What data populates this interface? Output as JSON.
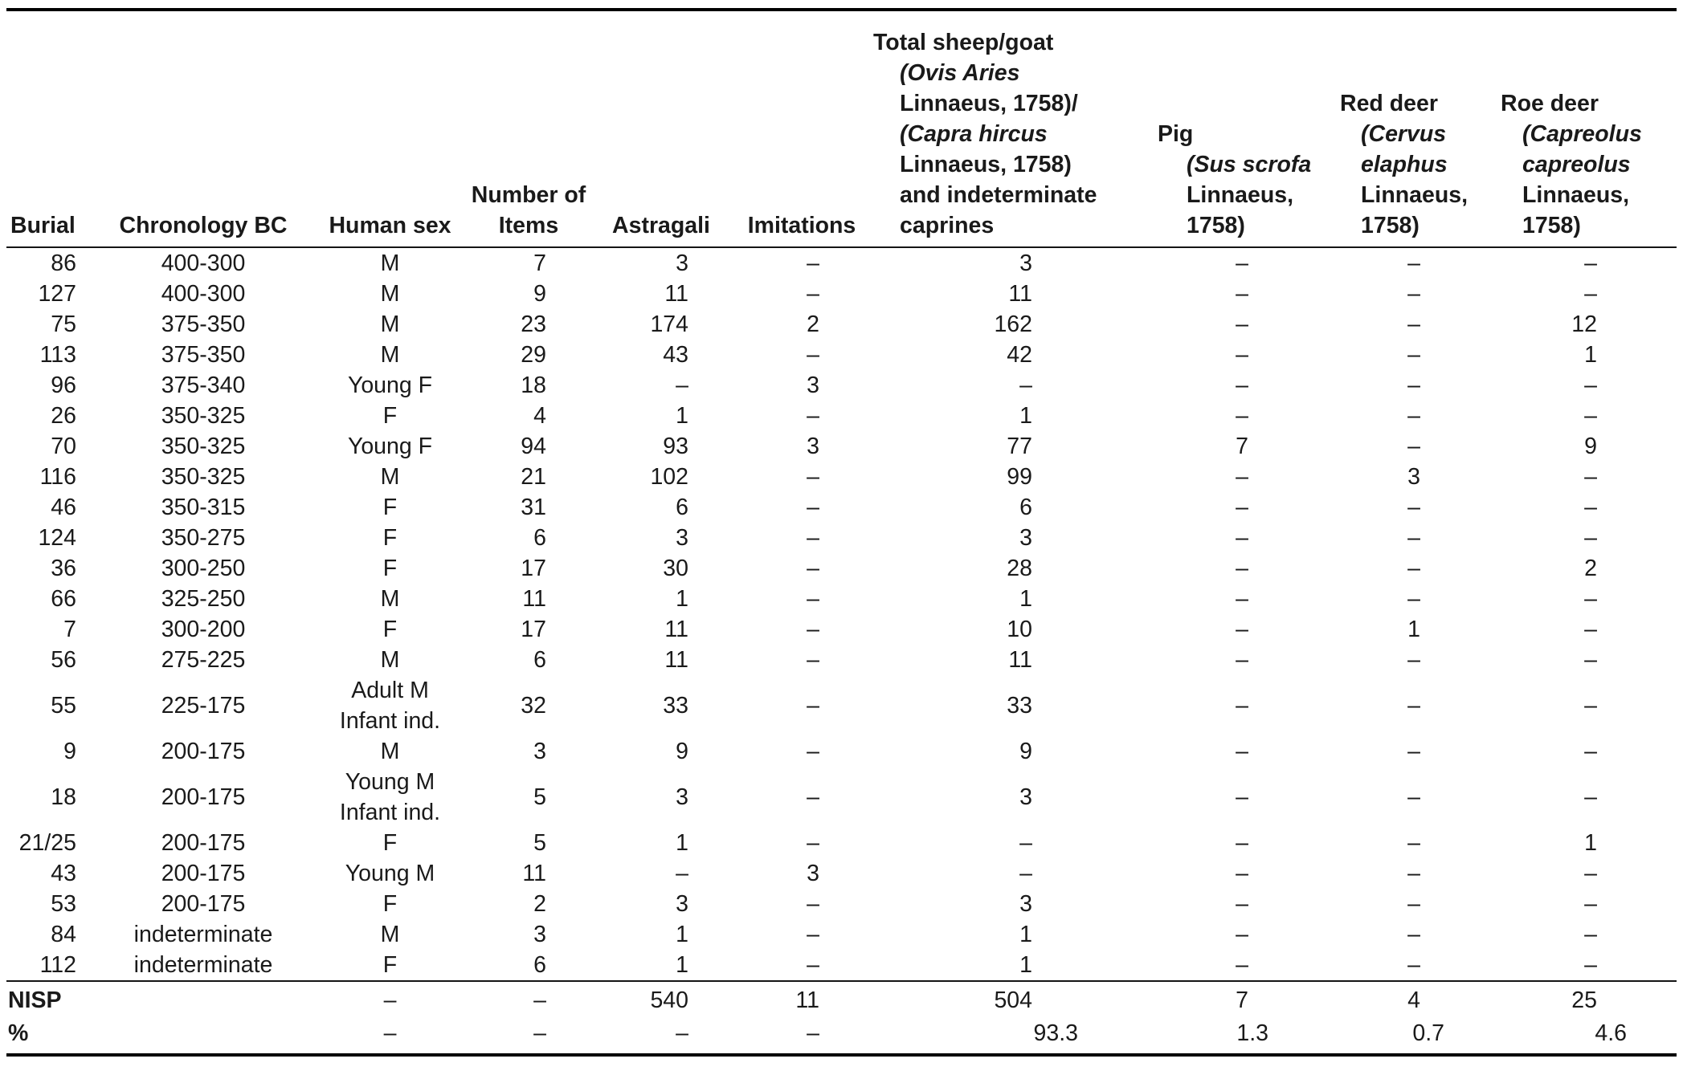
{
  "table": {
    "dash": "–",
    "columns": [
      {
        "name": "burial",
        "lines": [
          [
            "Burial"
          ]
        ]
      },
      {
        "name": "chronology_bc",
        "lines": [
          [
            "Chronology BC"
          ]
        ]
      },
      {
        "name": "human_sex",
        "lines": [
          [
            "Human sex"
          ]
        ]
      },
      {
        "name": "number_of_items",
        "lines": [
          [
            "Number of"
          ],
          [
            "Items"
          ]
        ]
      },
      {
        "name": "astragali",
        "lines": [
          [
            "Astragali"
          ]
        ]
      },
      {
        "name": "imitations",
        "lines": [
          [
            "Imitations"
          ]
        ]
      },
      {
        "name": "total_sheep_goat",
        "lines": [
          [
            "Total sheep/goat"
          ],
          [
            {
              "t": "(Ovis Aries",
              "italic": true
            }
          ],
          [
            "Linnaeus, 1758)/"
          ],
          [
            {
              "t": "(Capra hircus",
              "italic": true
            }
          ],
          [
            "Linnaeus, 1758)"
          ],
          [
            "and indeterminate"
          ],
          [
            "caprines"
          ]
        ]
      },
      {
        "name": "pig",
        "lines": [
          [
            "Pig"
          ],
          [
            {
              "t": "(Sus scrofa",
              "italic": true
            }
          ],
          [
            "Linnaeus,"
          ],
          [
            "1758)"
          ]
        ]
      },
      {
        "name": "red_deer",
        "lines": [
          [
            "Red deer"
          ],
          [
            {
              "t": "(Cervus",
              "italic": true
            }
          ],
          [
            {
              "t": "elaphus",
              "italic": true
            }
          ],
          [
            "Linnaeus,"
          ],
          [
            "1758)"
          ]
        ]
      },
      {
        "name": "roe_deer",
        "lines": [
          [
            "Roe deer"
          ],
          [
            {
              "t": "(Capreolus",
              "italic": true
            }
          ],
          [
            {
              "t": "capreolus",
              "italic": true
            }
          ],
          [
            "Linnaeus,"
          ],
          [
            "1758)"
          ]
        ]
      }
    ],
    "rows": [
      {
        "burial": "86",
        "chronology": "400-300",
        "sex": [
          "M"
        ],
        "items": "7",
        "astragali": "3",
        "imitations": "–",
        "sheep_goat": "3",
        "pig": "–",
        "red_deer": "–",
        "roe_deer": "–"
      },
      {
        "burial": "127",
        "chronology": "400-300",
        "sex": [
          "M"
        ],
        "items": "9",
        "astragali": "11",
        "imitations": "–",
        "sheep_goat": "11",
        "pig": "–",
        "red_deer": "–",
        "roe_deer": "–"
      },
      {
        "burial": "75",
        "chronology": "375-350",
        "sex": [
          "M"
        ],
        "items": "23",
        "astragali": "174",
        "imitations": "2",
        "sheep_goat": "162",
        "pig": "–",
        "red_deer": "–",
        "roe_deer": "12"
      },
      {
        "burial": "113",
        "chronology": "375-350",
        "sex": [
          "M"
        ],
        "items": "29",
        "astragali": "43",
        "imitations": "–",
        "sheep_goat": "42",
        "pig": "–",
        "red_deer": "–",
        "roe_deer": "1"
      },
      {
        "burial": "96",
        "chronology": "375-340",
        "sex": [
          "Young F"
        ],
        "items": "18",
        "astragali": "–",
        "imitations": "3",
        "sheep_goat": "–",
        "pig": "–",
        "red_deer": "–",
        "roe_deer": "–"
      },
      {
        "burial": "26",
        "chronology": "350-325",
        "sex": [
          "F"
        ],
        "items": "4",
        "astragali": "1",
        "imitations": "–",
        "sheep_goat": "1",
        "pig": "–",
        "red_deer": "–",
        "roe_deer": "–"
      },
      {
        "burial": "70",
        "chronology": "350-325",
        "sex": [
          "Young F"
        ],
        "items": "94",
        "astragali": "93",
        "imitations": "3",
        "sheep_goat": "77",
        "pig": "7",
        "red_deer": "–",
        "roe_deer": "9"
      },
      {
        "burial": "116",
        "chronology": "350-325",
        "sex": [
          "M"
        ],
        "items": "21",
        "astragali": "102",
        "imitations": "–",
        "sheep_goat": "99",
        "pig": "–",
        "red_deer": "3",
        "roe_deer": "–"
      },
      {
        "burial": "46",
        "chronology": "350-315",
        "sex": [
          "F"
        ],
        "items": "31",
        "astragali": "6",
        "imitations": "–",
        "sheep_goat": "6",
        "pig": "–",
        "red_deer": "–",
        "roe_deer": "–"
      },
      {
        "burial": "124",
        "chronology": "350-275",
        "sex": [
          "F"
        ],
        "items": "6",
        "astragali": "3",
        "imitations": "–",
        "sheep_goat": "3",
        "pig": "–",
        "red_deer": "–",
        "roe_deer": "–"
      },
      {
        "burial": "36",
        "chronology": "300-250",
        "sex": [
          "F"
        ],
        "items": "17",
        "astragali": "30",
        "imitations": "–",
        "sheep_goat": "28",
        "pig": "–",
        "red_deer": "–",
        "roe_deer": "2"
      },
      {
        "burial": "66",
        "chronology": "325-250",
        "sex": [
          "M"
        ],
        "items": "11",
        "astragali": "1",
        "imitations": "–",
        "sheep_goat": "1",
        "pig": "–",
        "red_deer": "–",
        "roe_deer": "–"
      },
      {
        "burial": "7",
        "chronology": "300-200",
        "sex": [
          "F"
        ],
        "items": "17",
        "astragali": "11",
        "imitations": "–",
        "sheep_goat": "10",
        "pig": "–",
        "red_deer": "1",
        "roe_deer": "–"
      },
      {
        "burial": "56",
        "chronology": "275-225",
        "sex": [
          "M"
        ],
        "items": "6",
        "astragali": "11",
        "imitations": "–",
        "sheep_goat": "11",
        "pig": "–",
        "red_deer": "–",
        "roe_deer": "–"
      },
      {
        "burial": "55",
        "chronology": "225-175",
        "sex": [
          "Adult M",
          "Infant ind."
        ],
        "items": "32",
        "astragali": "33",
        "imitations": "–",
        "sheep_goat": "33",
        "pig": "–",
        "red_deer": "–",
        "roe_deer": "–"
      },
      {
        "burial": "9",
        "chronology": "200-175",
        "sex": [
          "M"
        ],
        "items": "3",
        "astragali": "9",
        "imitations": "–",
        "sheep_goat": "9",
        "pig": "–",
        "red_deer": "–",
        "roe_deer": "–"
      },
      {
        "burial": "18",
        "chronology": "200-175",
        "sex": [
          "Young M",
          "Infant ind."
        ],
        "items": "5",
        "astragali": "3",
        "imitations": "–",
        "sheep_goat": "3",
        "pig": "–",
        "red_deer": "–",
        "roe_deer": "–"
      },
      {
        "burial": "21/25",
        "chronology": "200-175",
        "sex": [
          "F"
        ],
        "items": "5",
        "astragali": "1",
        "imitations": "–",
        "sheep_goat": "–",
        "pig": "–",
        "red_deer": "–",
        "roe_deer": "1"
      },
      {
        "burial": "43",
        "chronology": "200-175",
        "sex": [
          "Young M"
        ],
        "items": "11",
        "astragali": "–",
        "imitations": "3",
        "sheep_goat": "–",
        "pig": "–",
        "red_deer": "–",
        "roe_deer": "–"
      },
      {
        "burial": "53",
        "chronology": "200-175",
        "sex": [
          "F"
        ],
        "items": "2",
        "astragali": "3",
        "imitations": "–",
        "sheep_goat": "3",
        "pig": "–",
        "red_deer": "–",
        "roe_deer": "–"
      },
      {
        "burial": "84",
        "chronology": "indeterminate",
        "sex": [
          "M"
        ],
        "items": "3",
        "astragali": "1",
        "imitations": "–",
        "sheep_goat": "1",
        "pig": "–",
        "red_deer": "–",
        "roe_deer": "–"
      },
      {
        "burial": "112",
        "chronology": "indeterminate",
        "sex": [
          "F"
        ],
        "items": "6",
        "astragali": "1",
        "imitations": "–",
        "sheep_goat": "1",
        "pig": "–",
        "red_deer": "–",
        "roe_deer": "–"
      }
    ],
    "summary_rows": [
      {
        "label": "NISP",
        "chronology": "",
        "sex": "–",
        "items": "–",
        "astragali": "540",
        "imitations": "11",
        "sheep_goat": "504",
        "pig": "7",
        "red_deer": "4",
        "roe_deer": "25"
      },
      {
        "label": "%",
        "chronology": "",
        "sex": "–",
        "items": "–",
        "astragali": "–",
        "imitations": "–",
        "sheep_goat": "93.3",
        "pig": "1.3",
        "red_deer": "0.7",
        "roe_deer": "4.6"
      }
    ]
  }
}
